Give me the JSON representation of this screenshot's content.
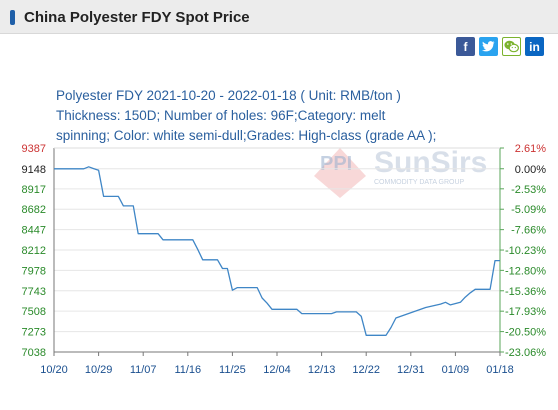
{
  "page": {
    "title": "China Polyester FDY Spot Price",
    "share": {
      "facebook_icon": "f",
      "twitter_icon": "t",
      "wechat_icon": "w",
      "linkedin_icon": "in"
    },
    "watermark": {
      "brand": "SunSirs",
      "tagline": "COMMODITY DATA GROUP"
    }
  },
  "chart_data": {
    "type": "line",
    "title": "Polyester FDY 2021-10-20 - 2022-01-18     ( Unit: RMB/ton )",
    "subtitle_lines": [
      "Thickness: 150D; Number of holes: 96F;Category: melt",
      "spinning; Color: white semi-dull;Grades: High-class (grade AA );"
    ],
    "xlabel": "",
    "ylabel": "",
    "ylim": [
      7038,
      9387
    ],
    "xlim": [
      "2021-10-20",
      "2022-01-18"
    ],
    "yticks": [
      {
        "value": 9387,
        "label": "9387",
        "right_label": "2.61%",
        "color": "#cc3333",
        "right_color": "#cc3333"
      },
      {
        "value": 9148,
        "label": "9148",
        "right_label": "0.00%",
        "color": "#222222",
        "right_color": "#222222"
      },
      {
        "value": 8917,
        "label": "8917",
        "right_label": "-2.53%",
        "color": "#2a8a2a",
        "right_color": "#2a8a2a"
      },
      {
        "value": 8682,
        "label": "8682",
        "right_label": "-5.09%",
        "color": "#2a8a2a",
        "right_color": "#2a8a2a"
      },
      {
        "value": 8447,
        "label": "8447",
        "right_label": "-7.66%",
        "color": "#2a8a2a",
        "right_color": "#2a8a2a"
      },
      {
        "value": 8212,
        "label": "8212",
        "right_label": "-10.23%",
        "color": "#2a8a2a",
        "right_color": "#2a8a2a"
      },
      {
        "value": 7978,
        "label": "7978",
        "right_label": "-12.80%",
        "color": "#2a8a2a",
        "right_color": "#2a8a2a"
      },
      {
        "value": 7743,
        "label": "7743",
        "right_label": "-15.36%",
        "color": "#2a8a2a",
        "right_color": "#2a8a2a"
      },
      {
        "value": 7508,
        "label": "7508",
        "right_label": "-17.93%",
        "color": "#2a8a2a",
        "right_color": "#2a8a2a"
      },
      {
        "value": 7273,
        "label": "7273",
        "right_label": "-20.50%",
        "color": "#2a8a2a",
        "right_color": "#2a8a2a"
      },
      {
        "value": 7038,
        "label": "7038",
        "right_label": "-23.06%",
        "color": "#2a8a2a",
        "right_color": "#2a8a2a"
      }
    ],
    "xticks": [
      "10/20",
      "10/29",
      "11/07",
      "11/16",
      "11/25",
      "12/04",
      "12/13",
      "12/22",
      "12/31",
      "01/09",
      "01/18"
    ],
    "grid": "horizontal",
    "series": [
      {
        "color": "#3f86c6",
        "points": [
          {
            "x": "2021-10-20",
            "y": 9148
          },
          {
            "x": "2021-10-26",
            "y": 9148
          },
          {
            "x": "2021-10-27",
            "y": 9170
          },
          {
            "x": "2021-10-28",
            "y": 9150
          },
          {
            "x": "2021-10-29",
            "y": 9130
          },
          {
            "x": "2021-10-30",
            "y": 8830
          },
          {
            "x": "2021-11-02",
            "y": 8830
          },
          {
            "x": "2021-11-03",
            "y": 8720
          },
          {
            "x": "2021-11-05",
            "y": 8720
          },
          {
            "x": "2021-11-06",
            "y": 8400
          },
          {
            "x": "2021-11-10",
            "y": 8400
          },
          {
            "x": "2021-11-11",
            "y": 8330
          },
          {
            "x": "2021-11-17",
            "y": 8330
          },
          {
            "x": "2021-11-18",
            "y": 8220
          },
          {
            "x": "2021-11-19",
            "y": 8100
          },
          {
            "x": "2021-11-22",
            "y": 8100
          },
          {
            "x": "2021-11-23",
            "y": 8000
          },
          {
            "x": "2021-11-24",
            "y": 8000
          },
          {
            "x": "2021-11-25",
            "y": 7750
          },
          {
            "x": "2021-11-26",
            "y": 7780
          },
          {
            "x": "2021-11-30",
            "y": 7780
          },
          {
            "x": "2021-12-01",
            "y": 7660
          },
          {
            "x": "2021-12-02",
            "y": 7600
          },
          {
            "x": "2021-12-03",
            "y": 7530
          },
          {
            "x": "2021-12-08",
            "y": 7530
          },
          {
            "x": "2021-12-09",
            "y": 7480
          },
          {
            "x": "2021-12-15",
            "y": 7480
          },
          {
            "x": "2021-12-16",
            "y": 7500
          },
          {
            "x": "2021-12-20",
            "y": 7500
          },
          {
            "x": "2021-12-21",
            "y": 7450
          },
          {
            "x": "2021-12-22",
            "y": 7230
          },
          {
            "x": "2021-12-26",
            "y": 7230
          },
          {
            "x": "2021-12-27",
            "y": 7320
          },
          {
            "x": "2021-12-28",
            "y": 7430
          },
          {
            "x": "2021-12-30",
            "y": 7470
          },
          {
            "x": "2022-01-03",
            "y": 7550
          },
          {
            "x": "2022-01-06",
            "y": 7590
          },
          {
            "x": "2022-01-07",
            "y": 7610
          },
          {
            "x": "2022-01-08",
            "y": 7580
          },
          {
            "x": "2022-01-10",
            "y": 7610
          },
          {
            "x": "2022-01-11",
            "y": 7670
          },
          {
            "x": "2022-01-12",
            "y": 7720
          },
          {
            "x": "2022-01-13",
            "y": 7760
          },
          {
            "x": "2022-01-16",
            "y": 7760
          },
          {
            "x": "2022-01-17",
            "y": 8090
          },
          {
            "x": "2022-01-18",
            "y": 8090
          }
        ]
      }
    ]
  }
}
